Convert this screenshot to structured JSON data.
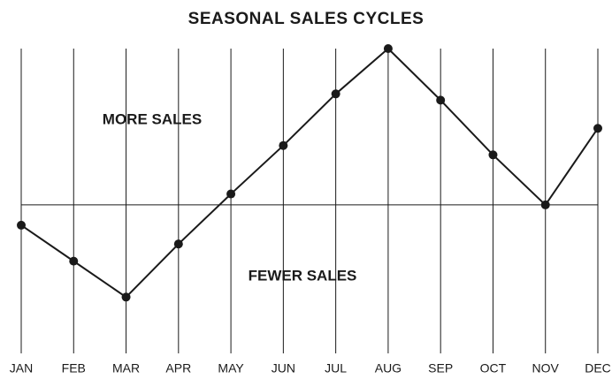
{
  "chart_data": {
    "type": "line",
    "title": "SEASONAL SALES CYCLES",
    "annotations": [
      "MORE SALES",
      "FEWER SALES"
    ],
    "categories": [
      "JAN",
      "FEB",
      "MAR",
      "APR",
      "MAY",
      "JUN",
      "JUL",
      "AUG",
      "SEP",
      "OCT",
      "NOV",
      "DEC"
    ],
    "values": [
      -13,
      -36,
      -59,
      -25,
      7,
      38,
      71,
      100,
      67,
      32,
      0,
      49
    ],
    "color": "#1a1a1a",
    "ylim": [
      -95,
      100
    ],
    "baseline": 0,
    "grid": true
  }
}
